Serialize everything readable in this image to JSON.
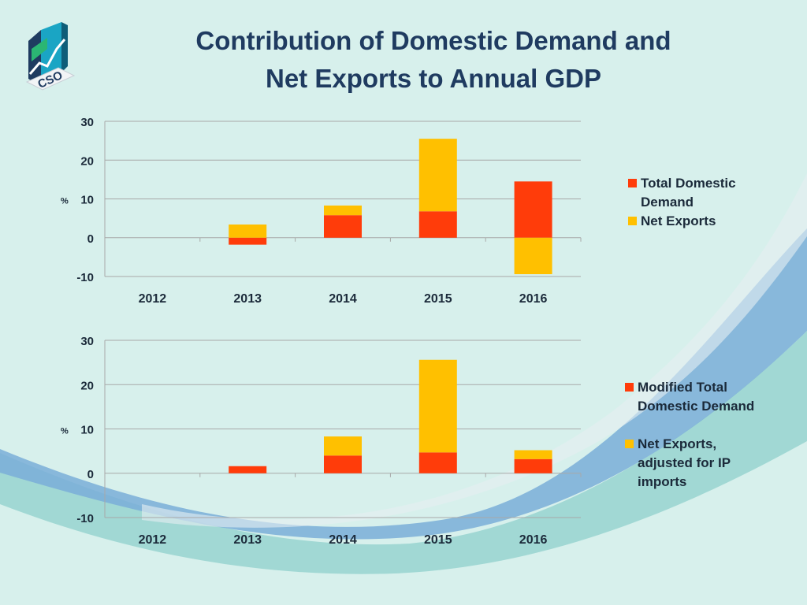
{
  "title_line1": "Contribution of Domestic Demand and",
  "title_line2": "Net Exports to Annual GDP",
  "logo_text": "CSO",
  "colors": {
    "domestic": "#ff3c0a",
    "net_exports": "#ffc000",
    "grid": "#a8a8a8",
    "text": "#1b2a3a",
    "title": "#1f3b60"
  },
  "chart_data": [
    {
      "type": "bar",
      "stacked": true,
      "title": "",
      "ylabel": "%",
      "xlabel": "",
      "categories": [
        "2012",
        "2013",
        "2014",
        "2015",
        "2016"
      ],
      "ylim": [
        -10,
        30
      ],
      "yticks": [
        -10,
        0,
        10,
        20,
        30
      ],
      "grid": true,
      "legend_position": "right",
      "series": [
        {
          "name": "Total Domestic Demand",
          "key": "domestic",
          "values": [
            0,
            -1.8,
            5.8,
            6.8,
            14.5
          ]
        },
        {
          "name": "Net Exports",
          "key": "net_exports",
          "values": [
            0,
            3.4,
            2.5,
            18.7,
            -9.4
          ]
        }
      ]
    },
    {
      "type": "bar",
      "stacked": true,
      "title": "",
      "ylabel": "%",
      "xlabel": "",
      "categories": [
        "2012",
        "2013",
        "2014",
        "2015",
        "2016"
      ],
      "ylim": [
        -10,
        30
      ],
      "yticks": [
        -10,
        0,
        10,
        20,
        30
      ],
      "grid": true,
      "legend_position": "right",
      "series": [
        {
          "name": "Modified Total Domestic Demand",
          "key": "domestic",
          "values": [
            0,
            1.6,
            4.0,
            4.7,
            3.2
          ]
        },
        {
          "name": "Net Exports, adjusted for IP imports",
          "key": "net_exports",
          "values": [
            0,
            0,
            4.3,
            20.9,
            2.0
          ]
        }
      ]
    }
  ],
  "legend1": [
    {
      "key": "domestic",
      "lines": [
        "Total Domestic",
        "Demand"
      ]
    },
    {
      "key": "net_exports",
      "lines": [
        "Net Exports"
      ]
    }
  ],
  "legend2": [
    {
      "key": "domestic",
      "lines": [
        "Modified Total",
        "Domestic Demand"
      ]
    },
    {
      "key": "net_exports",
      "lines": [
        "Net Exports,",
        "adjusted for IP",
        "imports"
      ]
    }
  ]
}
